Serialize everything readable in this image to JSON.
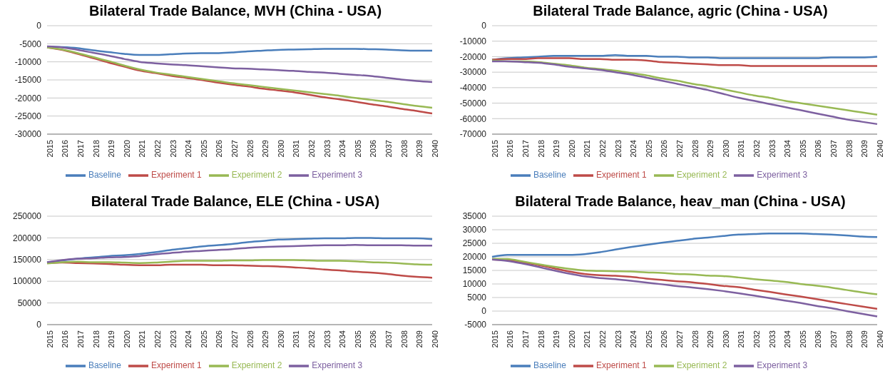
{
  "chart_data": [
    {
      "type": "line",
      "title": "Bilateral Trade Balance, MVH (China - USA)",
      "categories": [
        "2015",
        "2016",
        "2017",
        "2018",
        "2019",
        "2020",
        "2021",
        "2022",
        "2023",
        "2024",
        "2025",
        "2026",
        "2027",
        "2028",
        "2029",
        "2030",
        "2031",
        "2032",
        "2033",
        "2034",
        "2035",
        "2036",
        "2037",
        "2038",
        "2039",
        "2040"
      ],
      "ylim": [
        -30000,
        0
      ],
      "yticks": [
        -30000,
        -25000,
        -20000,
        -15000,
        -10000,
        -5000,
        0
      ],
      "grid": "y",
      "legend": "bottom",
      "marker": "none",
      "series": [
        {
          "name": "Baseline",
          "color": "#4a7ebb",
          "values": [
            -5800,
            -5900,
            -6200,
            -6800,
            -7300,
            -7800,
            -8100,
            -8100,
            -7900,
            -7700,
            -7600,
            -7600,
            -7400,
            -7100,
            -6900,
            -6700,
            -6600,
            -6500,
            -6400,
            -6400,
            -6400,
            -6500,
            -6600,
            -6800,
            -6900,
            -6900
          ]
        },
        {
          "name": "Experiment 1",
          "color": "#be4b48",
          "values": [
            -6000,
            -6700,
            -7800,
            -9000,
            -10200,
            -11300,
            -12400,
            -13100,
            -13800,
            -14400,
            -15000,
            -15700,
            -16300,
            -16800,
            -17400,
            -17900,
            -18400,
            -19100,
            -19800,
            -20400,
            -21000,
            -21700,
            -22300,
            -23000,
            -23600,
            -24300
          ]
        },
        {
          "name": "Experiment 2",
          "color": "#98b954",
          "values": [
            -6000,
            -6600,
            -7600,
            -8700,
            -9800,
            -11000,
            -12100,
            -12900,
            -13500,
            -14100,
            -14700,
            -15300,
            -15900,
            -16400,
            -16900,
            -17400,
            -17900,
            -18400,
            -18900,
            -19400,
            -20000,
            -20500,
            -21000,
            -21600,
            -22200,
            -22700
          ]
        },
        {
          "name": "Experiment 3",
          "color": "#7d60a0",
          "values": [
            -5700,
            -6000,
            -6700,
            -7500,
            -8300,
            -9200,
            -10000,
            -10400,
            -10700,
            -10900,
            -11200,
            -11500,
            -11800,
            -11900,
            -12100,
            -12300,
            -12500,
            -12800,
            -13000,
            -13300,
            -13600,
            -13900,
            -14400,
            -14900,
            -15300,
            -15600
          ]
        }
      ]
    },
    {
      "type": "line",
      "title": "Bilateral Trade Balance, agric (China - USA)",
      "categories": [
        "2015",
        "2016",
        "2017",
        "2018",
        "2019",
        "2020",
        "2021",
        "2022",
        "2023",
        "2024",
        "2025",
        "2026",
        "2027",
        "2028",
        "2029",
        "2030",
        "2031",
        "2032",
        "2033",
        "2034",
        "2035",
        "2036",
        "2037",
        "2038",
        "2039",
        "2040"
      ],
      "ylim": [
        -70000,
        0
      ],
      "yticks": [
        -70000,
        -60000,
        -50000,
        -40000,
        -30000,
        -20000,
        -10000,
        0
      ],
      "grid": "y",
      "legend": "bottom",
      "marker": "none",
      "series": [
        {
          "name": "Baseline",
          "color": "#4a7ebb",
          "values": [
            -22000,
            -21000,
            -20500,
            -20000,
            -19500,
            -19500,
            -19500,
            -19500,
            -19000,
            -19500,
            -19500,
            -20000,
            -20000,
            -20500,
            -20500,
            -21000,
            -21000,
            -21000,
            -21000,
            -21000,
            -21000,
            -21000,
            -20500,
            -20500,
            -20500,
            -20000
          ]
        },
        {
          "name": "Experiment 1",
          "color": "#be4b48",
          "values": [
            -22000,
            -21500,
            -21500,
            -21000,
            -21000,
            -21000,
            -21500,
            -21500,
            -22000,
            -22000,
            -22500,
            -23500,
            -24000,
            -24500,
            -25000,
            -25500,
            -25500,
            -26000,
            -26000,
            -26000,
            -26000,
            -26000,
            -26000,
            -26000,
            -26000,
            -26000
          ]
        },
        {
          "name": "Experiment 2",
          "color": "#98b954",
          "values": [
            -22500,
            -23000,
            -23000,
            -23500,
            -24500,
            -25500,
            -27000,
            -28000,
            -29000,
            -30500,
            -32000,
            -34000,
            -35500,
            -37500,
            -39000,
            -41000,
            -43000,
            -45000,
            -46500,
            -48500,
            -50000,
            -51500,
            -53000,
            -54500,
            -56000,
            -57500
          ]
        },
        {
          "name": "Experiment 3",
          "color": "#7d60a0",
          "values": [
            -23000,
            -23000,
            -23500,
            -24000,
            -25000,
            -26500,
            -27500,
            -28500,
            -30000,
            -31500,
            -33500,
            -35500,
            -37500,
            -39500,
            -41500,
            -44000,
            -46500,
            -48500,
            -50500,
            -52500,
            -54500,
            -56500,
            -58500,
            -60500,
            -62000,
            -63500
          ]
        }
      ]
    },
    {
      "type": "line",
      "title": "Bilateral Trade Balance, ELE (China - USA)",
      "categories": [
        "2015",
        "2016",
        "2017",
        "2018",
        "2019",
        "2020",
        "2021",
        "2022",
        "2023",
        "2024",
        "2025",
        "2026",
        "2027",
        "2028",
        "2029",
        "2030",
        "2031",
        "2032",
        "2033",
        "2034",
        "2035",
        "2036",
        "2037",
        "2038",
        "2039",
        "2040"
      ],
      "ylim": [
        0,
        250000
      ],
      "yticks": [
        0,
        50000,
        100000,
        150000,
        200000,
        250000
      ],
      "grid": "y",
      "legend": "bottom",
      "marker": "none",
      "series": [
        {
          "name": "Baseline",
          "color": "#4a7ebb",
          "values": [
            143000,
            148000,
            152000,
            155000,
            158000,
            160000,
            163000,
            167000,
            172000,
            176000,
            180000,
            183000,
            186000,
            190000,
            193000,
            196000,
            197000,
            198000,
            199000,
            199000,
            200000,
            200000,
            199000,
            199000,
            199000,
            197000
          ]
        },
        {
          "name": "Experiment 1",
          "color": "#be4b48",
          "values": [
            142000,
            143000,
            142000,
            141000,
            140000,
            138000,
            137000,
            137000,
            138000,
            138000,
            138000,
            137000,
            137000,
            136000,
            135000,
            134000,
            132000,
            130000,
            127000,
            125000,
            122000,
            120000,
            117000,
            113000,
            110000,
            108000
          ]
        },
        {
          "name": "Experiment 2",
          "color": "#98b954",
          "values": [
            141000,
            144000,
            145000,
            144000,
            144000,
            143000,
            142000,
            143000,
            145000,
            147000,
            147000,
            147000,
            148000,
            148000,
            149000,
            149000,
            149000,
            148000,
            147000,
            147000,
            146000,
            144000,
            143000,
            141000,
            139000,
            138000
          ]
        },
        {
          "name": "Experiment 3",
          "color": "#7d60a0",
          "values": [
            144000,
            149000,
            152000,
            153000,
            155000,
            156000,
            158000,
            162000,
            165000,
            168000,
            170000,
            172000,
            174000,
            177000,
            179000,
            180000,
            181000,
            182000,
            183000,
            183000,
            184000,
            183000,
            183000,
            183000,
            182000,
            182000
          ]
        }
      ]
    },
    {
      "type": "line",
      "title": "Bilateral Trade Balance, heav_man (China - USA)",
      "categories": [
        "2015",
        "2016",
        "2017",
        "2018",
        "2019",
        "2020",
        "2021",
        "2022",
        "2023",
        "2024",
        "2025",
        "2026",
        "2027",
        "2028",
        "2029",
        "2030",
        "2031",
        "2032",
        "2033",
        "2034",
        "2035",
        "2036",
        "2037",
        "2038",
        "2039",
        "2040"
      ],
      "ylim": [
        -5000,
        35000
      ],
      "yticks": [
        -5000,
        0,
        5000,
        10000,
        15000,
        20000,
        25000,
        30000,
        35000
      ],
      "grid": "y",
      "legend": "bottom",
      "marker": "none",
      "series": [
        {
          "name": "Baseline",
          "color": "#4a7ebb",
          "values": [
            20000,
            20700,
            20700,
            20700,
            20700,
            20700,
            21000,
            21700,
            22700,
            23600,
            24400,
            25200,
            25900,
            26600,
            27100,
            27700,
            28200,
            28400,
            28600,
            28600,
            28600,
            28400,
            28200,
            27900,
            27500,
            27300
          ]
        },
        {
          "name": "Experiment 1",
          "color": "#be4b48",
          "values": [
            19000,
            18800,
            17900,
            17000,
            15800,
            14600,
            13700,
            13200,
            13000,
            12600,
            12000,
            11500,
            11000,
            10600,
            10000,
            9300,
            8800,
            7900,
            7100,
            6200,
            5400,
            4500,
            3500,
            2600,
            1700,
            800
          ]
        },
        {
          "name": "Experiment 2",
          "color": "#98b954",
          "values": [
            19300,
            19200,
            18300,
            17300,
            16400,
            15600,
            15000,
            14800,
            14700,
            14600,
            14300,
            14100,
            13700,
            13500,
            13100,
            12900,
            12400,
            11800,
            11300,
            10800,
            10000,
            9400,
            8700,
            7800,
            6900,
            6200
          ]
        },
        {
          "name": "Experiment 3",
          "color": "#7d60a0",
          "values": [
            19000,
            18500,
            17500,
            16300,
            15000,
            13800,
            12800,
            12200,
            11800,
            11200,
            10500,
            9900,
            9200,
            8700,
            8100,
            7400,
            6600,
            5700,
            4800,
            3900,
            3000,
            2000,
            1100,
            0,
            -1000,
            -2000
          ]
        }
      ]
    }
  ]
}
